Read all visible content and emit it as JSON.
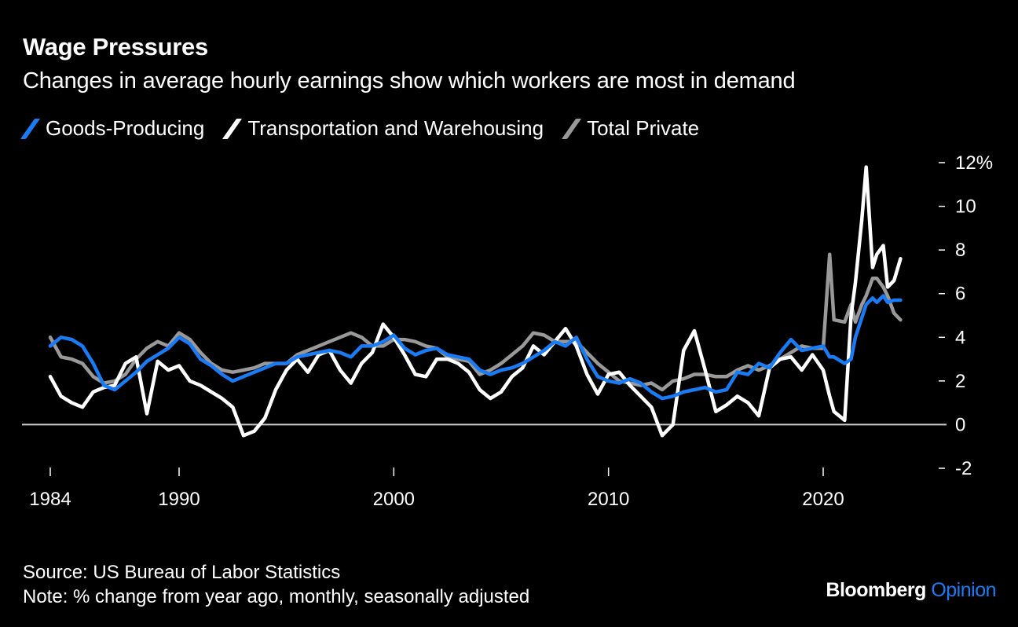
{
  "header": {
    "title": "Wage Pressures",
    "subtitle": "Changes in average hourly earnings show which workers are most in demand"
  },
  "footer": {
    "source": "Source: US Bureau of Labor Statistics",
    "note": "Note: % change from year ago, monthly, seasonally adjusted"
  },
  "brand": {
    "name": "Bloomberg",
    "suffix": "Opinion",
    "suffix_color": "#1a7cf5"
  },
  "chart_data": {
    "type": "line",
    "title": "Wage Pressures",
    "subtitle": "Changes in average hourly earnings show which workers are most in demand",
    "xlabel": "",
    "ylabel": "% change from year ago",
    "xlim": [
      1982.7,
      2025.6
    ],
    "ylim": [
      -2,
      12
    ],
    "x_ticks": [
      1984,
      1990,
      2000,
      2010,
      2020
    ],
    "x_tick_labels": [
      "1984",
      "1990",
      "2000",
      "2010",
      "2020"
    ],
    "y_ticks": [
      -2,
      0,
      2,
      4,
      6,
      8,
      10,
      12
    ],
    "y_tick_labels": [
      "-2",
      "0",
      "2",
      "4",
      "6",
      "8",
      "10",
      "12%"
    ],
    "zero_line": true,
    "grid": false,
    "legend_position": "top-left",
    "x": [
      1984.0,
      1984.5,
      1985.0,
      1985.5,
      1986.0,
      1986.5,
      1987.0,
      1987.5,
      1988.0,
      1988.5,
      1989.0,
      1989.5,
      1990.0,
      1990.5,
      1991.0,
      1991.5,
      1992.0,
      1992.5,
      1993.0,
      1993.5,
      1994.0,
      1994.5,
      1995.0,
      1995.5,
      1996.0,
      1996.5,
      1997.0,
      1997.5,
      1998.0,
      1998.5,
      1999.0,
      1999.5,
      2000.0,
      2000.5,
      2001.0,
      2001.5,
      2002.0,
      2002.5,
      2003.0,
      2003.5,
      2004.0,
      2004.5,
      2005.0,
      2005.5,
      2006.0,
      2006.5,
      2007.0,
      2007.5,
      2008.0,
      2008.5,
      2009.0,
      2009.5,
      2010.0,
      2010.5,
      2011.0,
      2011.5,
      2012.0,
      2012.5,
      2013.0,
      2013.5,
      2014.0,
      2014.5,
      2015.0,
      2015.5,
      2016.0,
      2016.5,
      2017.0,
      2017.5,
      2018.0,
      2018.5,
      2019.0,
      2019.5,
      2020.0,
      2020.3,
      2020.5,
      2021.0,
      2021.3,
      2021.5,
      2021.8,
      2022.0,
      2022.3,
      2022.5,
      2022.8,
      2023.0,
      2023.3,
      2023.6
    ],
    "series": [
      {
        "name": "Goods-Producing",
        "color": "#1a7cf5",
        "values": [
          3.6,
          4.0,
          3.9,
          3.6,
          2.8,
          1.8,
          1.6,
          2.0,
          2.4,
          2.9,
          3.2,
          3.5,
          4.0,
          3.7,
          3.0,
          2.7,
          2.3,
          2.0,
          2.2,
          2.4,
          2.6,
          2.8,
          2.8,
          3.1,
          3.2,
          3.3,
          3.4,
          3.3,
          3.1,
          3.6,
          3.6,
          3.8,
          4.1,
          3.5,
          3.2,
          3.4,
          3.5,
          3.2,
          3.1,
          3.0,
          2.5,
          2.3,
          2.5,
          2.6,
          2.8,
          3.1,
          3.4,
          3.8,
          3.6,
          4.0,
          3.0,
          2.2,
          2.0,
          1.9,
          2.1,
          1.9,
          1.5,
          1.2,
          1.3,
          1.5,
          1.6,
          1.7,
          1.5,
          1.6,
          2.4,
          2.3,
          2.8,
          2.6,
          3.3,
          3.9,
          3.4,
          3.5,
          3.6,
          3.1,
          3.1,
          2.8,
          3.0,
          4.0,
          4.9,
          5.5,
          5.8,
          5.6,
          5.9,
          5.6,
          5.7,
          5.7
        ]
      },
      {
        "name": "Transportation and Warehousing",
        "color": "#ffffff",
        "values": [
          2.2,
          1.3,
          1.0,
          0.8,
          1.5,
          1.7,
          1.8,
          2.8,
          3.1,
          0.5,
          2.9,
          2.5,
          2.7,
          2.0,
          1.8,
          1.5,
          1.2,
          0.8,
          -0.5,
          -0.3,
          0.3,
          1.6,
          2.5,
          3.0,
          2.4,
          3.2,
          3.4,
          2.5,
          1.9,
          2.8,
          3.3,
          4.6,
          4.0,
          3.2,
          2.3,
          2.2,
          3.0,
          3.0,
          2.8,
          2.4,
          1.6,
          1.2,
          1.5,
          2.2,
          2.6,
          3.6,
          3.2,
          3.8,
          4.4,
          3.6,
          2.3,
          1.4,
          2.3,
          2.4,
          1.8,
          1.3,
          0.8,
          -0.5,
          0.0,
          3.4,
          4.3,
          2.5,
          0.6,
          0.9,
          1.3,
          1.0,
          0.4,
          2.6,
          3.0,
          3.1,
          2.5,
          3.2,
          2.5,
          1.3,
          0.6,
          0.2,
          5.0,
          6.5,
          9.4,
          11.8,
          7.2,
          7.8,
          8.2,
          6.3,
          6.6,
          7.6
        ]
      },
      {
        "name": "Total Private",
        "color": "#999999",
        "values": [
          4.0,
          3.1,
          3.0,
          2.8,
          2.2,
          1.9,
          2.0,
          2.3,
          3.0,
          3.5,
          3.8,
          3.6,
          4.2,
          3.9,
          3.3,
          2.8,
          2.5,
          2.4,
          2.5,
          2.6,
          2.8,
          2.8,
          2.8,
          3.2,
          3.4,
          3.6,
          3.8,
          4.0,
          4.2,
          4.0,
          3.6,
          3.6,
          3.9,
          3.9,
          3.8,
          3.6,
          3.5,
          3.1,
          3.0,
          2.9,
          2.3,
          2.5,
          2.8,
          3.2,
          3.6,
          4.2,
          4.1,
          3.8,
          3.8,
          3.8,
          3.3,
          2.8,
          2.4,
          2.0,
          1.9,
          1.8,
          1.9,
          1.6,
          2.0,
          2.1,
          2.3,
          2.3,
          2.2,
          2.2,
          2.5,
          2.7,
          2.5,
          2.7,
          3.0,
          3.3,
          3.6,
          3.5,
          3.5,
          7.8,
          4.8,
          4.7,
          5.5,
          4.7,
          5.5,
          5.9,
          6.7,
          6.7,
          6.3,
          5.9,
          5.1,
          4.8
        ]
      }
    ]
  }
}
